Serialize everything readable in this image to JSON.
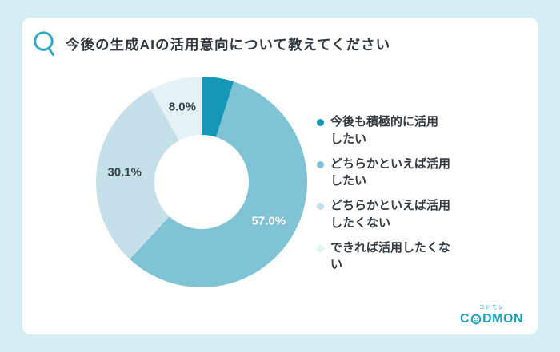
{
  "header": {
    "question": "今後の生成AIの活用意向について教えてください"
  },
  "chart_data": {
    "type": "pie",
    "donut": true,
    "title": "今後の生成AIの活用意向について教えてください",
    "labels": [
      "今後も積極的に活用したい",
      "どちらかといえば活用したい",
      "どちらかといえば活用したくない",
      "できれば活用したくない"
    ],
    "values": [
      4.9,
      57.0,
      30.1,
      8.0
    ],
    "colors": [
      "#1597b8",
      "#7fc3d4",
      "#c6e0e9",
      "#e4f1f5"
    ],
    "value_labels": [
      "",
      "57.0%",
      "30.1%",
      "8.0%"
    ],
    "value_label_colors": [
      "",
      "#ffffff",
      "#33424a",
      "#33424a"
    ],
    "start_angle_deg": 0,
    "legend_position": "right"
  },
  "legend": {
    "items": [
      {
        "label": "今後も積極的に活用\nしたい",
        "color": "#1597b8"
      },
      {
        "label": "どちらかといえば活用\nしたい",
        "color": "#7fc3d4"
      },
      {
        "label": "どちらかといえば活用\nしたくない",
        "color": "#c6e0e9"
      },
      {
        "label": "できれば活用したくな\nい",
        "color": "#e4f1f5"
      }
    ]
  },
  "logo": {
    "kana": "コドモン",
    "brand_prefix": "C",
    "brand_suffix": "DMON",
    "color": "#1a9fbb"
  }
}
